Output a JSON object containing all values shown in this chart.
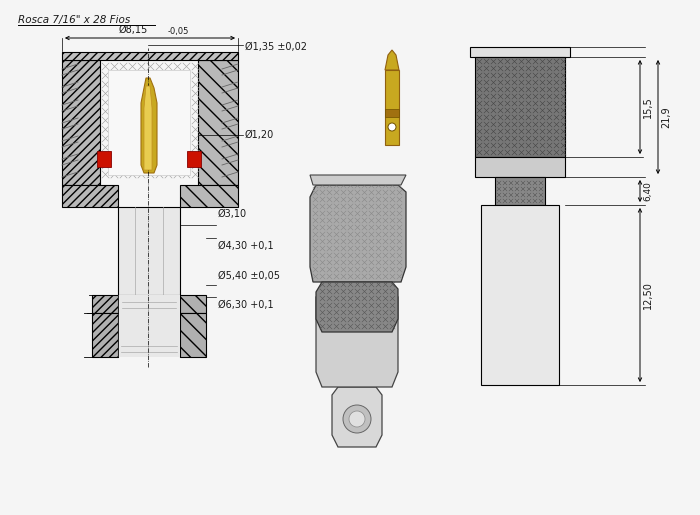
{
  "bg_color": "#f0f0f0",
  "text_color": "#1a1a1a",
  "labels": {
    "thread": "Rosca 7/16\" x 28 Fios",
    "d815": "Ø8,15",
    "d815_tol": "-0,05",
    "d135": "Ø1,35",
    "d135_tol": "±0,02",
    "d120": "Ø1,20",
    "d310": "Ø3,10",
    "d430": "Ø4,30",
    "d430_tol": "+0,1",
    "d540": "Ø5,40",
    "d540_tol": "±0,05",
    "d630": "Ø6,30",
    "d630_tol": "+0,1",
    "dim155": "15,5",
    "dim219": "21,9",
    "dim640": "6,40",
    "dim1250": "12,50"
  },
  "fig_width": 7.0,
  "fig_height": 5.15,
  "dpi": 100
}
